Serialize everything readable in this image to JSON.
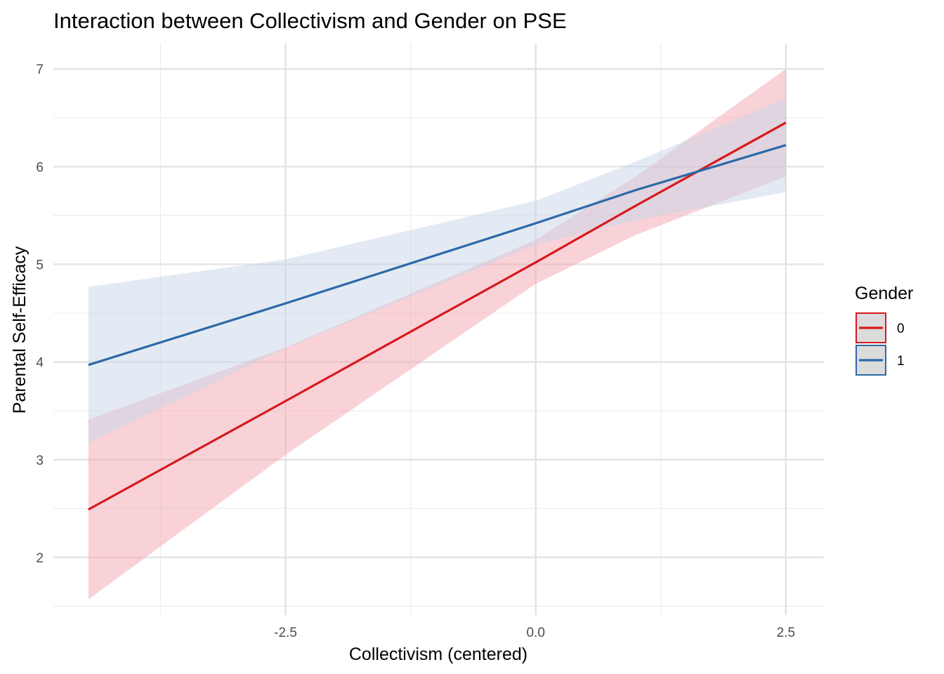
{
  "chart_data": {
    "type": "line",
    "title": "Interaction between Collectivism and Gender on PSE",
    "xlabel": "Collectivism (centered)",
    "ylabel": "Parental Self-Efficacy",
    "xlim": [
      -4.82,
      2.88
    ],
    "ylim": [
      1.41,
      7.26
    ],
    "x_ticks": [
      -2.5,
      0.0,
      2.5
    ],
    "x_tick_labels": [
      "-2.5",
      "0.0",
      "2.5"
    ],
    "x_minor_ticks": [
      -3.75,
      -1.25,
      1.25
    ],
    "y_ticks": [
      2,
      3,
      4,
      5,
      6,
      7
    ],
    "y_tick_labels": [
      "2",
      "3",
      "4",
      "5",
      "6",
      "7"
    ],
    "y_minor_ticks": [
      1.5,
      2.5,
      3.5,
      4.5,
      5.5,
      6.5
    ],
    "grid": true,
    "legend": {
      "title": "Gender",
      "position": "right"
    },
    "series": [
      {
        "name": "0",
        "color": "#d7191c",
        "fill": "#f4a6b1",
        "x": [
          -4.47,
          -2.5,
          0.0,
          1.0,
          2.5
        ],
        "y": [
          2.49,
          3.6,
          5.02,
          5.6,
          6.45
        ],
        "lower": [
          1.57,
          3.05,
          4.8,
          5.3,
          5.9
        ],
        "upper": [
          3.41,
          4.15,
          5.25,
          5.9,
          7.0
        ]
      },
      {
        "name": "1",
        "color": "#2c69a8",
        "fill": "#c8d6e8",
        "x": [
          -4.47,
          -2.5,
          0.0,
          1.0,
          2.5
        ],
        "y": [
          3.97,
          4.6,
          5.42,
          5.76,
          6.22
        ],
        "lower": [
          3.17,
          4.14,
          5.2,
          5.45,
          5.74
        ],
        "upper": [
          4.77,
          5.05,
          5.65,
          6.05,
          6.7
        ]
      }
    ]
  }
}
